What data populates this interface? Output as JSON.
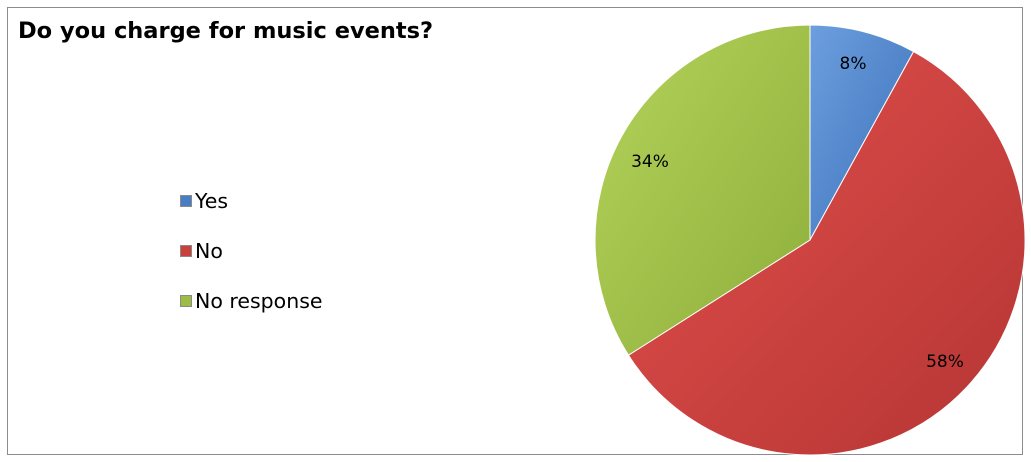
{
  "chart_data": {
    "type": "pie",
    "title": "Do you charge for music events?",
    "categories": [
      "Yes",
      "No",
      "No response"
    ],
    "values": [
      8,
      58,
      34
    ],
    "data_labels": [
      "8%",
      "58%",
      "34%"
    ],
    "colors": [
      "#4a7ec4",
      "#c9403d",
      "#9cbc45"
    ],
    "legend_position": "left"
  }
}
